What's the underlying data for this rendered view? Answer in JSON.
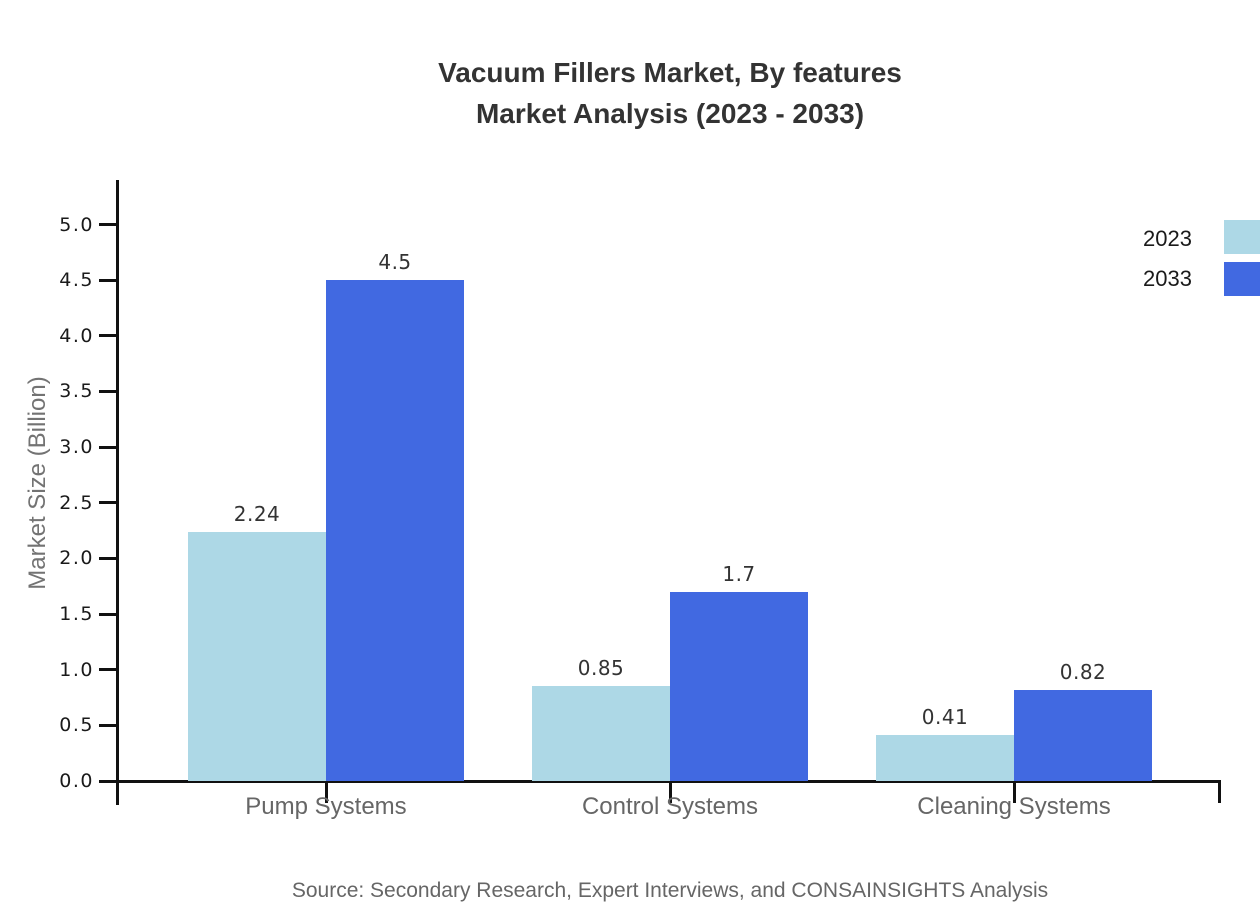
{
  "chart_data": {
    "type": "bar",
    "title": "Vacuum Fillers Market, By features Market Analysis (2023 - 2033)",
    "title_lines": [
      "Vacuum Fillers Market, By features",
      "Market Analysis (2023 - 2033)"
    ],
    "ylabel": "Market Size (Billion)",
    "xlabel": "",
    "categories": [
      "Pump Systems",
      "Control Systems",
      "Cleaning Systems"
    ],
    "series": [
      {
        "name": "2023",
        "color": "#ADD8E6",
        "values": [
          2.24,
          0.85,
          0.41
        ]
      },
      {
        "name": "2033",
        "color": "#4169E1",
        "values": [
          4.5,
          1.7,
          0.82
        ]
      }
    ],
    "value_labels": [
      [
        "2.24",
        "0.85",
        "0.41"
      ],
      [
        "4.5",
        "1.7",
        "0.82"
      ]
    ],
    "ylim": [
      0,
      5.5
    ],
    "yticks": [
      "0.0",
      "0.5",
      "1.0",
      "1.5",
      "2.0",
      "2.5",
      "3.0",
      "3.5",
      "4.0",
      "4.5",
      "5.0"
    ],
    "grid": false,
    "legend_position": "top-right",
    "source": "Source: Secondary Research, Expert Interviews, and CONSAINSIGHTS Analysis",
    "axis_color": "#111111"
  }
}
